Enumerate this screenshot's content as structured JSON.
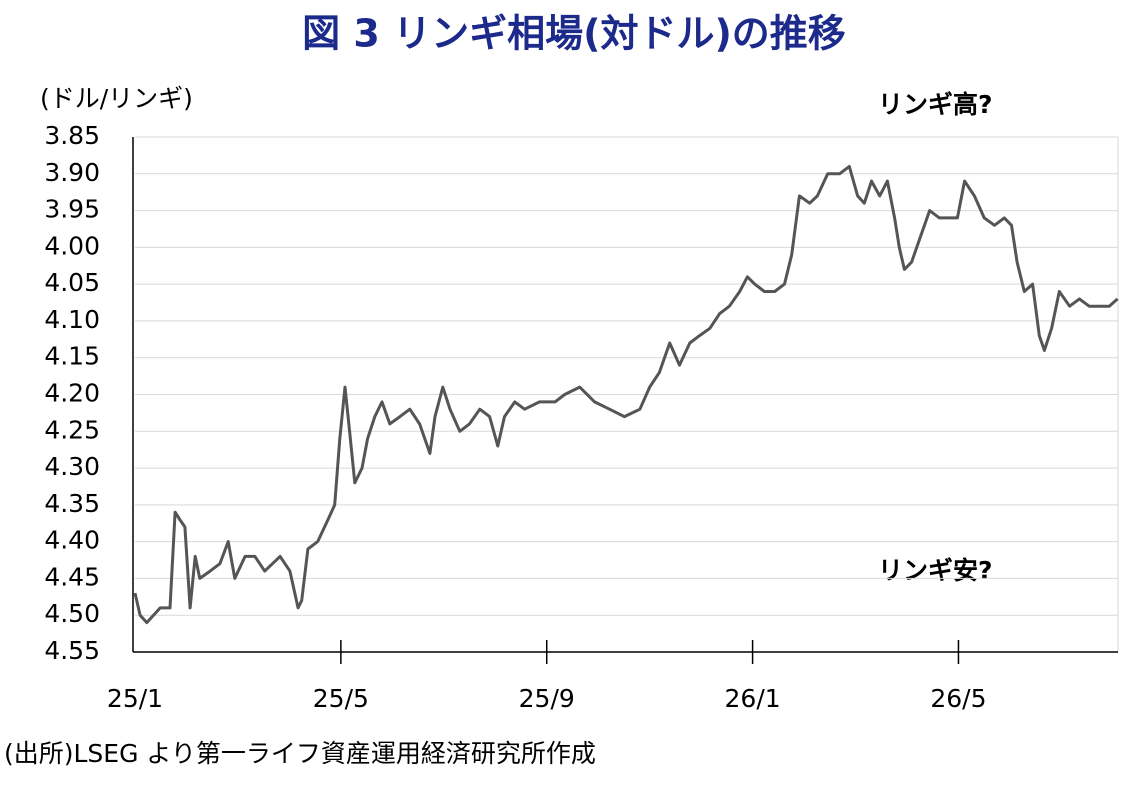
{
  "chart_data": {
    "type": "line",
    "title": "図 3  リンギ相場(対ドル)の推移",
    "y_axis_label": "(ドル/リンギ)",
    "annotations": [
      "リンギ高?",
      "リンギ安?"
    ],
    "source": "(出所)LSEG より第一ライフ資産運用経済研究所作成",
    "color": "#555555",
    "grid": true,
    "x": [
      0,
      0.1,
      0.23,
      0.49,
      0.68,
      0.78,
      0.87,
      0.97,
      1.07,
      1.17,
      1.26,
      1.46,
      1.65,
      1.81,
      1.94,
      2.14,
      2.33,
      2.52,
      2.82,
      3.01,
      3.17,
      3.24,
      3.36,
      3.55,
      3.75,
      3.88,
      3.98,
      4.08,
      4.17,
      4.27,
      4.41,
      4.52,
      4.66,
      4.8,
      4.95,
      5.15,
      5.34,
      5.53,
      5.73,
      5.83,
      5.98,
      6.12,
      6.31,
      6.5,
      6.7,
      6.89,
      7.05,
      7.18,
      7.38,
      7.57,
      7.86,
      8.16,
      8.35,
      8.64,
      8.93,
      9.22,
      9.51,
      9.81,
      10.0,
      10.19,
      10.39,
      10.58,
      10.78,
      10.97,
      11.17,
      11.36,
      11.55,
      11.75,
      11.9,
      12.04,
      12.23,
      12.43,
      12.62,
      12.76,
      12.91,
      13.11,
      13.26,
      13.46,
      13.69,
      13.88,
      14.04,
      14.17,
      14.31,
      14.47,
      14.62,
      14.76,
      14.85,
      14.95,
      15.09,
      15.24,
      15.44,
      15.63,
      15.83,
      15.98,
      16.12,
      16.31,
      16.5,
      16.7,
      16.89,
      17.03,
      17.14,
      17.28,
      17.44,
      17.57,
      17.67,
      17.81,
      17.96,
      18.16,
      18.35,
      18.54,
      18.74,
      18.93,
      19.09
    ],
    "values": [
      4.47,
      4.5,
      4.51,
      4.49,
      4.49,
      4.36,
      4.37,
      4.38,
      4.49,
      4.42,
      4.45,
      4.44,
      4.43,
      4.4,
      4.45,
      4.42,
      4.42,
      4.44,
      4.42,
      4.44,
      4.49,
      4.48,
      4.41,
      4.4,
      4.37,
      4.35,
      4.26,
      4.19,
      4.25,
      4.32,
      4.3,
      4.26,
      4.23,
      4.21,
      4.24,
      4.23,
      4.22,
      4.24,
      4.28,
      4.23,
      4.19,
      4.22,
      4.25,
      4.24,
      4.22,
      4.23,
      4.27,
      4.23,
      4.21,
      4.22,
      4.21,
      4.21,
      4.2,
      4.19,
      4.21,
      4.22,
      4.23,
      4.22,
      4.19,
      4.17,
      4.13,
      4.16,
      4.13,
      4.12,
      4.11,
      4.09,
      4.08,
      4.06,
      4.04,
      4.05,
      4.06,
      4.06,
      4.05,
      4.01,
      3.93,
      3.94,
      3.93,
      3.9,
      3.9,
      3.89,
      3.93,
      3.94,
      3.91,
      3.93,
      3.91,
      3.96,
      4.0,
      4.03,
      4.02,
      3.99,
      3.95,
      3.96,
      3.96,
      3.96,
      3.91,
      3.93,
      3.96,
      3.97,
      3.96,
      3.97,
      4.02,
      4.06,
      4.05,
      4.12,
      4.14,
      4.11,
      4.06,
      4.08,
      4.07,
      4.08,
      4.08,
      4.08,
      4.07
    ],
    "xlim": [
      0,
      19.1
    ],
    "xticks": [
      {
        "value": 0,
        "label": "25/1"
      },
      {
        "value": 4,
        "label": "25/5"
      },
      {
        "value": 8,
        "label": "25/9"
      },
      {
        "value": 12,
        "label": "26/1"
      },
      {
        "value": 16,
        "label": "26/5"
      }
    ],
    "ylim": [
      4.55,
      3.85
    ],
    "yticks": [
      3.85,
      {
        "value": 3.9,
        "label": "3.90"
      },
      3.95,
      {
        "value": 4.0,
        "label": "4.00"
      },
      4.05,
      {
        "value": 4.1,
        "label": "4.10"
      },
      4.15,
      {
        "value": 4.2,
        "label": "4.20"
      },
      4.25,
      {
        "value": 4.3,
        "label": "4.30"
      },
      4.35,
      {
        "value": 4.4,
        "label": "4.40"
      },
      4.45,
      {
        "value": 4.5,
        "label": "4.50"
      },
      4.55
    ]
  }
}
